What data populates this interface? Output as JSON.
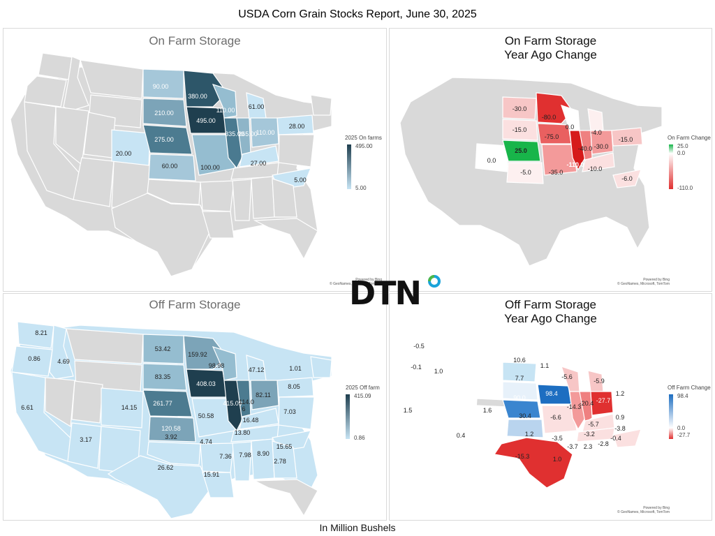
{
  "title": "USDA Corn Grain Stocks Report, June 30, 2025",
  "footer": "In Million Bushels",
  "logo": "DTN",
  "attribution": {
    "line1": "Powered by Bing",
    "line2": "© GeoNames, Microsoft, TomTom"
  },
  "colors": {
    "dark_blue": "#2d5669",
    "mid_blue": "#5b8aa0",
    "light_blue": "#c5e3f3",
    "gray": "#d9d9d9",
    "red": "#e03030",
    "green": "#18b54a",
    "blue": "#1d6ec1"
  },
  "panels": {
    "on_farm": {
      "title": "On Farm Storage",
      "legend_title": "2025 On farms",
      "legend_max": "495.00",
      "legend_min": "5.00",
      "labels": [
        "90.00",
        "380.00",
        "210.00",
        "110.00",
        "61.00",
        "275.00",
        "495.00",
        "335.00",
        "265.00",
        "110.00",
        "28.00",
        "20.00",
        "60.00",
        "100.00",
        "27.00",
        "5.00"
      ]
    },
    "on_farm_change": {
      "title_line1": "On Farm Storage",
      "title_line2": "Year Ago Change",
      "legend_title": "On Farm Change",
      "legend_max": "25.0",
      "legend_mid": "0.0",
      "legend_min": "-110.0",
      "labels": [
        "-30.0",
        "-80.0",
        "0.0",
        "-15.0",
        "-75.0",
        "-4.0",
        "25.0",
        "-40.0",
        "-30.0",
        "-15.0",
        "0.0",
        "-5.0",
        "-35.0",
        "-110.0",
        "-10.0",
        "-6.0"
      ]
    },
    "off_farm": {
      "title": "Off Farm Storage",
      "legend_title": "2025 Off farm",
      "legend_max": "415.09",
      "legend_min": "0.86",
      "labels": [
        "8.21",
        "0.86",
        "4.69",
        "53.42",
        "159.92",
        "98.98",
        "83.35",
        "47.12",
        "1.01",
        "261.77",
        "408.03",
        "82.11",
        "8.05",
        "6.61",
        "14.15",
        "120.58",
        "50.58",
        "415.09",
        "114.0",
        "6",
        "7.03",
        "16.48",
        "13.80",
        "15.65",
        "3.17",
        "3.92",
        "4.74",
        "2.78",
        "8.90",
        "7.98",
        "7.36",
        "26.62",
        "15.91"
      ]
    },
    "off_farm_change": {
      "title_line1": "Off Farm Storage",
      "title_line2": "Year Ago Change",
      "legend_title": "Off Farm Change",
      "legend_max": "98.4",
      "legend_mid": "0.0",
      "legend_min": "-27.7",
      "labels": [
        "-0.5",
        "-0.1",
        "1.0",
        "10.6",
        "1.1",
        "-5.6",
        "7.7",
        "-5.9",
        "90.0",
        "98.4",
        "-14.3",
        "-20.4",
        "-27.7",
        "1.2",
        "1.6",
        "30.4",
        "-6.6",
        "-5.7",
        "0.9",
        "1.5",
        "1.2",
        "-3.5",
        "-3.2",
        "-3.8",
        "0.4",
        "-0.4",
        "-3.7",
        "2.3",
        "-2.8",
        "1.0",
        "-15.3"
      ]
    }
  }
}
